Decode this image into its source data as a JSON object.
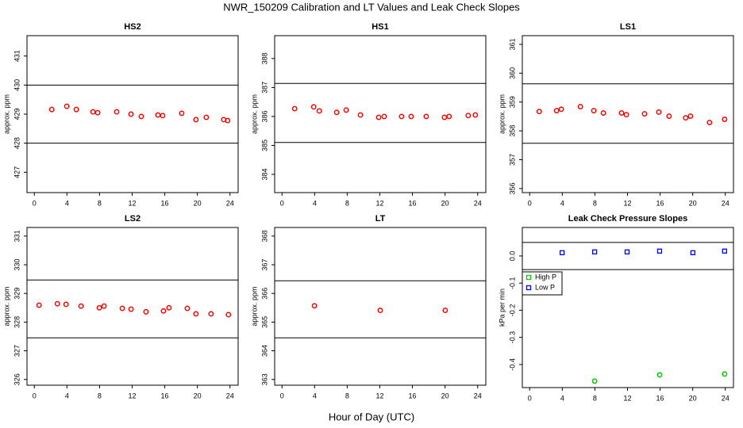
{
  "title": "NWR_150209  Calibration and LT Values and Leak Check Slopes",
  "xlabel": "Hour of Day (UTC)",
  "chart_data": [
    {
      "type": "scatter",
      "title": "HS2",
      "ylabel": "approx. ppm",
      "color": "#ff0000",
      "marker": "circle",
      "xlim": [
        -0.9,
        25.0
      ],
      "xticks": [
        0,
        4,
        8,
        12,
        16,
        20,
        24
      ],
      "ylim": [
        426.3,
        431.7
      ],
      "yticks": [
        427,
        428,
        429,
        430,
        431
      ],
      "hlines": [
        430,
        428
      ],
      "x": [
        2.14,
        3.98,
        5.15,
        7.19,
        7.77,
        10.1,
        11.86,
        13.12,
        15.16,
        15.74,
        18.08,
        19.82,
        21.09,
        23.23,
        23.71
      ],
      "values": [
        429.16,
        429.27,
        429.16,
        429.08,
        429.05,
        429.08,
        429.0,
        428.92,
        428.97,
        428.95,
        429.03,
        428.81,
        428.89,
        428.81,
        428.78
      ]
    },
    {
      "type": "scatter",
      "title": "HS1",
      "ylabel": "approx. ppm",
      "color": "#ff0000",
      "marker": "circle",
      "xlim": [
        -0.9,
        25.0
      ],
      "xticks": [
        0,
        4,
        8,
        12,
        16,
        20,
        24
      ],
      "ylim": [
        383.37,
        388.79
      ],
      "yticks": [
        384,
        385,
        386,
        387,
        388
      ],
      "hlines": [
        387.14,
        385.1
      ],
      "x": [
        1.55,
        3.89,
        4.57,
        6.71,
        7.87,
        9.62,
        11.86,
        12.54,
        14.67,
        15.84,
        17.69,
        19.92,
        20.5,
        22.84,
        23.71
      ],
      "values": [
        386.27,
        386.33,
        386.19,
        386.14,
        386.22,
        386.05,
        385.97,
        386.0,
        386.0,
        386.0,
        386.0,
        385.97,
        386.0,
        386.03,
        386.05
      ]
    },
    {
      "type": "scatter",
      "title": "LS1",
      "ylabel": "approx. ppm",
      "color": "#ff0000",
      "marker": "circle",
      "xlim": [
        -0.9,
        25.0
      ],
      "xticks": [
        0,
        4,
        8,
        12,
        16,
        20,
        24
      ],
      "ylim": [
        355.86,
        361.3
      ],
      "yticks": [
        356,
        357,
        358,
        359,
        360,
        361
      ],
      "hlines": [
        359.63,
        357.57
      ],
      "x": [
        1.17,
        3.3,
        3.88,
        6.22,
        7.87,
        9.04,
        11.27,
        11.86,
        14.09,
        15.84,
        17.1,
        19.14,
        19.73,
        22.06,
        23.91
      ],
      "values": [
        358.67,
        358.7,
        358.75,
        358.84,
        358.7,
        358.62,
        358.62,
        358.56,
        358.59,
        358.65,
        358.51,
        358.45,
        358.51,
        358.29,
        358.4
      ]
    },
    {
      "type": "scatter",
      "title": "LS2",
      "ylabel": "approx. ppm",
      "color": "#ff0000",
      "marker": "circle",
      "xlim": [
        -0.9,
        25.0
      ],
      "xticks": [
        0,
        4,
        8,
        12,
        16,
        20,
        24
      ],
      "ylim": [
        325.8,
        331.3
      ],
      "yticks": [
        326,
        327,
        328,
        329,
        330,
        331
      ],
      "hlines": [
        329.47,
        327.45
      ],
      "x": [
        0.58,
        2.82,
        3.89,
        5.73,
        7.97,
        8.55,
        10.79,
        11.86,
        13.7,
        15.84,
        16.52,
        18.76,
        19.82,
        21.67,
        23.81
      ],
      "values": [
        328.59,
        328.64,
        328.62,
        328.56,
        328.5,
        328.56,
        328.48,
        328.45,
        328.36,
        328.39,
        328.5,
        328.48,
        328.29,
        328.29,
        328.26
      ]
    },
    {
      "type": "scatter",
      "title": "LT",
      "ylabel": "approx. ppm",
      "color": "#ff0000",
      "marker": "circle",
      "xlim": [
        -0.9,
        25.0
      ],
      "xticks": [
        0,
        4,
        8,
        12,
        16,
        20,
        24
      ],
      "ylim": [
        362.8,
        368.3
      ],
      "yticks": [
        363,
        364,
        365,
        366,
        367,
        368
      ],
      "hlines": [
        366.44,
        364.45
      ],
      "x": [
        3.98,
        12.05,
        20.02
      ],
      "values": [
        365.57,
        365.41,
        365.41
      ]
    },
    {
      "type": "scatter",
      "title": "Leak Check Pressure Slopes",
      "ylabel": "kPa per min",
      "xlim": [
        -0.9,
        25.0
      ],
      "xticks": [
        0,
        4,
        8,
        12,
        16,
        20,
        24
      ],
      "ylim": [
        -0.485,
        0.105
      ],
      "yticks": [
        -0.4,
        -0.3,
        -0.2,
        -0.1,
        {
          "value": 0,
          "label": "0.0"
        }
      ],
      "hlines": [
        0.05,
        -0.05
      ],
      "legend": "topleft",
      "series": [
        {
          "name": "High P",
          "color": "#00cc00",
          "marker": "circle",
          "x": [
            7.97,
            15.94,
            23.91
          ],
          "values": [
            -0.461,
            -0.438,
            -0.435
          ]
        },
        {
          "name": "Low P",
          "color": "#0000ff",
          "marker": "square",
          "x": [
            3.98,
            7.97,
            11.95,
            15.94,
            20.02,
            23.91
          ],
          "values": [
            0.012,
            0.015,
            0.015,
            0.018,
            0.012,
            0.018
          ]
        }
      ]
    }
  ]
}
